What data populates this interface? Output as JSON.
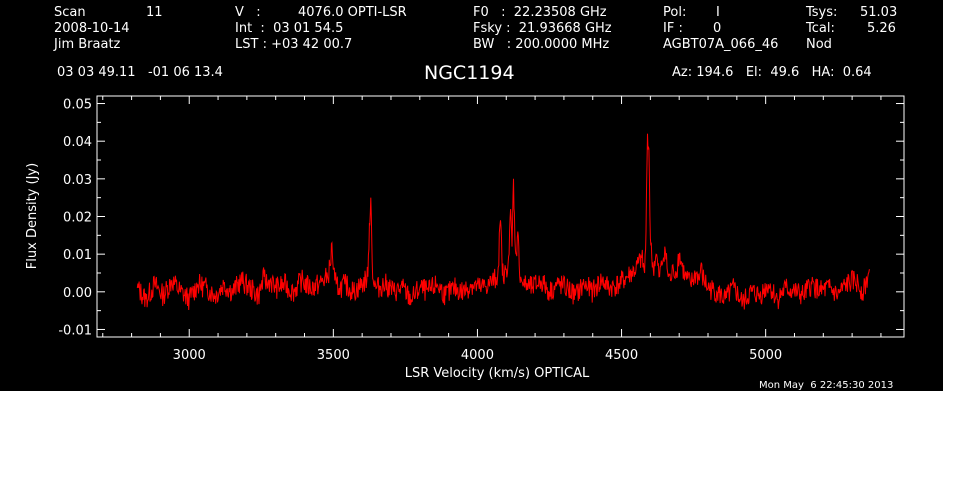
{
  "header": {
    "scan_label": "Scan",
    "scan_number": "11",
    "date": "2008-10-14",
    "observer": "Jim Braatz",
    "v_label": "V   :",
    "v_value": "4076.0 OPTI-LSR",
    "int_line": "Int  :  03 01 54.5",
    "lst_line": "LST : +03 42 00.7",
    "f0_line": "F0   :  22.23508 GHz",
    "fsky_line": "Fsky :  21.93668 GHz",
    "bw_line": "BW   : 200.0000 MHz",
    "pol_label": "Pol:",
    "pol_value": "I",
    "if_label": "IF :",
    "if_value": "0",
    "project": "AGBT07A_066_46",
    "tsys_label": "Tsys:",
    "tsys_value": "51.03",
    "tcal_label": "Tcal:",
    "tcal_value": "5.26",
    "procedure": "Nod",
    "coords": "03 03 49.11   -01 06 13.4",
    "source": "NGC1194",
    "az_el_ha": "Az: 194.6   El:  49.6   HA:  0.64"
  },
  "timestamp": "Mon May  6 22:45:30 2013",
  "colors": {
    "background": "#000000",
    "axes": "#ffffff",
    "spectrum": "#ff0000"
  },
  "chart_data": {
    "type": "line",
    "xlabel": "LSR Velocity (km/s) OPTICAL",
    "ylabel": "Flux Density (Jy)",
    "xlim": [
      2680,
      5480
    ],
    "ylim": [
      -0.012,
      0.052
    ],
    "x_ticks": [
      3000,
      3500,
      4000,
      4500,
      5000
    ],
    "x_tick_labels": [
      "3000",
      "3500",
      "4000",
      "4500",
      "5000"
    ],
    "y_ticks": [
      -0.01,
      0.0,
      0.01,
      0.02,
      0.03,
      0.04,
      0.05
    ],
    "y_tick_labels": [
      "-0.01",
      "0.00",
      "0.01",
      "0.02",
      "0.03",
      "0.04",
      "0.05"
    ],
    "grid": false,
    "series": [
      {
        "color": "#ff0000",
        "x": [
          2820,
          2850,
          2880,
          2910,
          2940,
          2970,
          3000,
          3030,
          3060,
          3090,
          3120,
          3150,
          3180,
          3210,
          3240,
          3260,
          3270,
          3280,
          3300,
          3330,
          3360,
          3390,
          3420,
          3450,
          3480,
          3490,
          3495,
          3500,
          3505,
          3510,
          3520,
          3540,
          3570,
          3600,
          3620,
          3625,
          3630,
          3635,
          3640,
          3650,
          3680,
          3710,
          3740,
          3770,
          3800,
          3830,
          3860,
          3890,
          3920,
          3950,
          3980,
          4010,
          4040,
          4070,
          4080,
          4085,
          4090,
          4100,
          4110,
          4115,
          4120,
          4125,
          4130,
          4135,
          4140,
          4145,
          4150,
          4160,
          4190,
          4220,
          4250,
          4280,
          4310,
          4340,
          4370,
          4400,
          4430,
          4460,
          4490,
          4520,
          4550,
          4570,
          4580,
          4585,
          4590,
          4595,
          4600,
          4605,
          4610,
          4620,
          4630,
          4640,
          4650,
          4660,
          4670,
          4680,
          4690,
          4695,
          4700,
          4720,
          4740,
          4760,
          4770,
          4775,
          4780,
          4800,
          4830,
          4860,
          4890,
          4920,
          4950,
          4980,
          5010,
          5040,
          5070,
          5100,
          5130,
          5160,
          5190,
          5220,
          5250,
          5280,
          5310,
          5340,
          5360
        ],
        "y": [
          0.001,
          -0.002,
          0.002,
          -0.001,
          0.003,
          0.0,
          -0.002,
          0.002,
          0.001,
          -0.001,
          0.002,
          0.0,
          0.003,
          0.001,
          -0.001,
          0.004,
          0.002,
          0.003,
          0.001,
          0.002,
          0.0,
          0.003,
          0.001,
          0.002,
          0.004,
          0.007,
          0.013,
          0.006,
          0.003,
          0.002,
          0.001,
          0.002,
          0.0,
          0.002,
          0.004,
          0.018,
          0.025,
          0.008,
          0.002,
          0.001,
          0.002,
          0.0,
          0.001,
          -0.002,
          0.001,
          0.0,
          0.002,
          -0.001,
          0.001,
          0.0,
          0.002,
          0.001,
          0.002,
          0.004,
          0.019,
          0.009,
          0.003,
          0.006,
          0.01,
          0.022,
          0.012,
          0.03,
          0.014,
          0.01,
          0.016,
          0.007,
          0.004,
          0.002,
          0.001,
          0.003,
          0.0,
          0.002,
          0.001,
          -0.001,
          0.002,
          0.0,
          0.003,
          0.001,
          0.002,
          0.004,
          0.006,
          0.009,
          0.005,
          0.016,
          0.042,
          0.038,
          0.014,
          0.009,
          0.006,
          0.01,
          0.004,
          0.007,
          0.012,
          0.005,
          0.003,
          0.006,
          0.005,
          0.008,
          0.01,
          0.004,
          0.002,
          0.005,
          0.003,
          0.007,
          0.004,
          0.001,
          0.0,
          -0.002,
          0.001,
          -0.003,
          0.0,
          -0.001,
          0.002,
          -0.002,
          0.001,
          0.0,
          -0.001,
          0.002,
          0.0,
          0.001,
          -0.001,
          0.002,
          0.003,
          0.0,
          0.006
        ]
      }
    ]
  }
}
